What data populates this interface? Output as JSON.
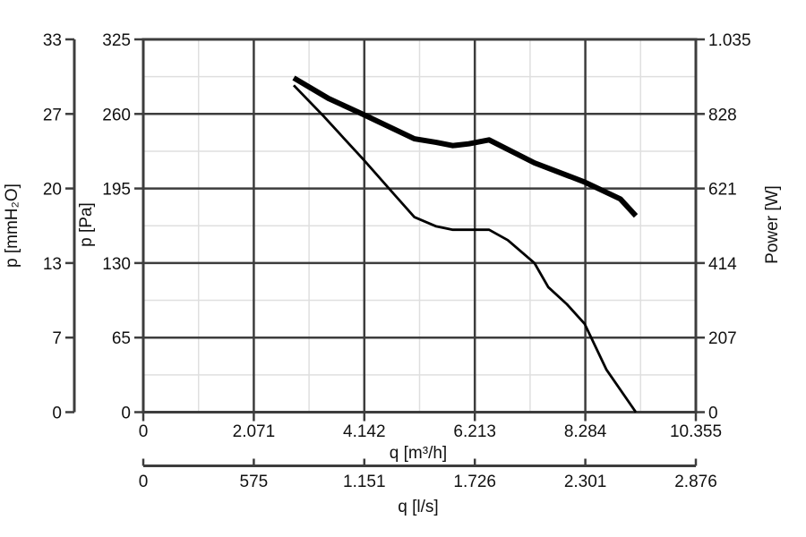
{
  "background_color": "#ffffff",
  "chart_data": {
    "type": "line",
    "title": "",
    "legend": "none",
    "grid": {
      "major": true,
      "minor": true,
      "major_color": "#3d3d3d",
      "minor_color": "#dfdfdf"
    },
    "axes": {
      "y_left_outer": {
        "title": "p [mmH₂O]",
        "unit": "mmH2O",
        "ticks": [
          "33",
          "27",
          "20",
          "13",
          "7",
          "0"
        ],
        "range": [
          0,
          33
        ]
      },
      "y_left_inner": {
        "title": "p [Pa]",
        "unit": "Pa",
        "ticks": [
          "325",
          "260",
          "195",
          "130",
          "65",
          "0"
        ],
        "range": [
          0,
          325
        ]
      },
      "y_right": {
        "title": "Power [W]",
        "unit": "W",
        "ticks": [
          "1.035",
          "828",
          "621",
          "414",
          "207",
          "0"
        ],
        "range": [
          0,
          1035
        ]
      },
      "x_bottom": {
        "title": "q [m³/h]",
        "unit": "m3/h",
        "ticks": [
          "0",
          "2.071",
          "4.142",
          "6.213",
          "8.284",
          "10.355"
        ],
        "range": [
          0,
          10355
        ]
      },
      "x_secondary": {
        "title": "q [l/s]",
        "unit": "l/s",
        "ticks": [
          "0",
          "575",
          "1.151",
          "1.726",
          "2.301",
          "2.876"
        ],
        "range": [
          0,
          2876
        ]
      }
    },
    "series": [
      {
        "name": "power-curve",
        "style": "thick",
        "color": "#000000",
        "y_axis": "y_right",
        "points": [
          [
            2820,
            928
          ],
          [
            3470,
            871
          ],
          [
            4130,
            826
          ],
          [
            5080,
            759
          ],
          [
            5490,
            749
          ],
          [
            5800,
            740
          ],
          [
            6100,
            745
          ],
          [
            6480,
            756
          ],
          [
            7330,
            692
          ],
          [
            8270,
            639
          ],
          [
            8940,
            592
          ],
          [
            9230,
            545
          ]
        ]
      },
      {
        "name": "pressure-curve",
        "style": "thin",
        "color": "#000000",
        "y_axis": "y_left_inner",
        "points": [
          [
            2820,
            285
          ],
          [
            3360,
            259
          ],
          [
            4130,
            220
          ],
          [
            4700,
            190
          ],
          [
            5080,
            170
          ],
          [
            5490,
            162
          ],
          [
            5800,
            159
          ],
          [
            6480,
            159
          ],
          [
            6830,
            150
          ],
          [
            7330,
            130
          ],
          [
            7590,
            109
          ],
          [
            7940,
            94
          ],
          [
            8270,
            77
          ],
          [
            8680,
            37
          ],
          [
            9230,
            0
          ]
        ]
      }
    ]
  }
}
